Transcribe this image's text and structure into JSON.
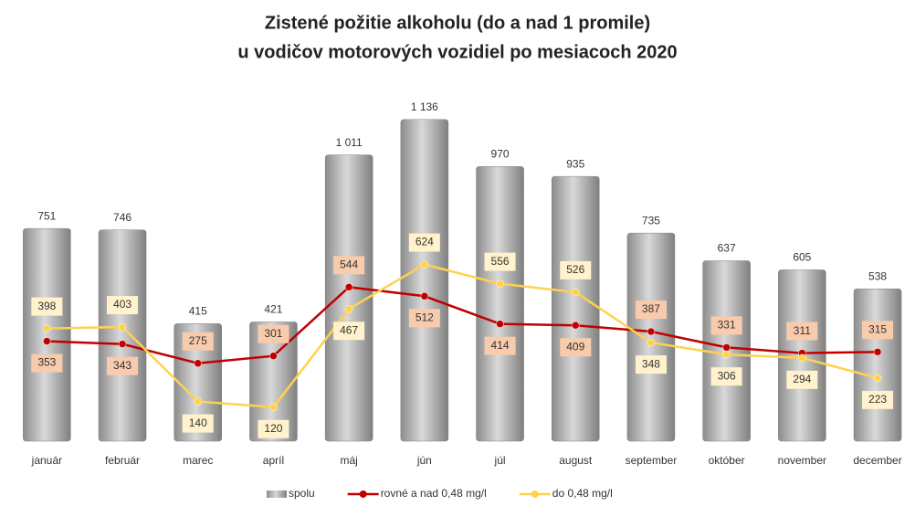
{
  "chart_data": {
    "type": "bar",
    "title": [
      "Zistené požitie alkoholu (do a nad 1 promile)",
      "u vodičov motorových vozidiel po mesiacoch 2020"
    ],
    "categories": [
      "január",
      "február",
      "marec",
      "apríl",
      "máj",
      "jún",
      "júl",
      "august",
      "september",
      "október",
      "november",
      "december"
    ],
    "series": [
      {
        "name": "spolu",
        "type": "bar",
        "color": "#a6a6a6",
        "values": [
          751,
          746,
          415,
          421,
          1011,
          1136,
          970,
          935,
          735,
          637,
          605,
          538
        ],
        "value_labels": [
          "751",
          "746",
          "415",
          "421",
          "1 011",
          "1 136",
          "970",
          "935",
          "735",
          "637",
          "605",
          "538"
        ]
      },
      {
        "name": "rovné a nad 0,48 mg/l",
        "type": "line",
        "color": "#c00000",
        "label_fill": "#f8cbad",
        "values": [
          353,
          343,
          275,
          301,
          544,
          512,
          414,
          409,
          387,
          331,
          311,
          315
        ]
      },
      {
        "name": "do 0,48 mg/l",
        "type": "line",
        "color": "#ffd24d",
        "label_fill": "#fff2cc",
        "values": [
          398,
          403,
          140,
          120,
          467,
          624,
          556,
          526,
          348,
          306,
          294,
          223
        ]
      }
    ],
    "ylim": [
      0,
      1200
    ],
    "grid": false,
    "legend": "bottom"
  }
}
